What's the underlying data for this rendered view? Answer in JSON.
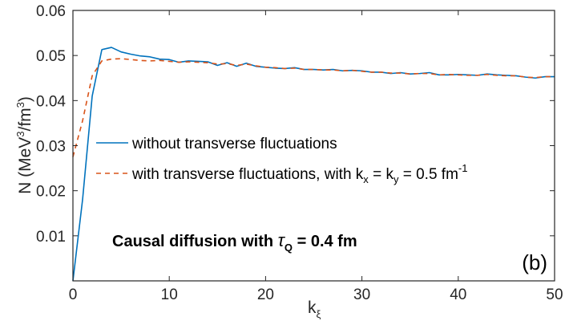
{
  "chart_data": {
    "type": "line",
    "xlabel": "k",
    "xlabel_sub": "ξ",
    "ylabel_parts": {
      "a": "N  (MeV",
      "a_sup": "3",
      "b": "/fm",
      "b_sup": "3",
      "c": ")"
    },
    "xlim": [
      0,
      50
    ],
    "ylim": [
      0,
      0.06
    ],
    "xticks": [
      0,
      10,
      20,
      30,
      40,
      50
    ],
    "xtick_labels": [
      "0",
      "10",
      "20",
      "30",
      "40",
      "50"
    ],
    "yticks": [
      0.01,
      0.02,
      0.03,
      0.04,
      0.05,
      0.06
    ],
    "ytick_labels": [
      "0.01",
      "0.02",
      "0.03",
      "0.04",
      "0.05",
      "0.06"
    ],
    "grid": false,
    "legend_position": "center-left",
    "series": [
      {
        "name": "without transverse fluctuations",
        "color": "#0072BD",
        "style": "solid",
        "x": [
          0,
          1,
          2,
          3,
          4,
          5,
          6,
          7,
          8,
          9,
          10,
          11,
          12,
          13,
          14,
          15,
          16,
          17,
          18,
          19,
          20,
          21,
          22,
          23,
          24,
          25,
          26,
          27,
          28,
          29,
          30,
          31,
          32,
          33,
          34,
          35,
          36,
          37,
          38,
          39,
          40,
          41,
          42,
          43,
          44,
          45,
          46,
          47,
          48,
          49,
          50
        ],
        "values": [
          0.0,
          0.018,
          0.041,
          0.0513,
          0.0518,
          0.0508,
          0.0503,
          0.0499,
          0.0497,
          0.0492,
          0.0491,
          0.0485,
          0.0488,
          0.0487,
          0.0486,
          0.0478,
          0.0484,
          0.0476,
          0.0483,
          0.0476,
          0.0474,
          0.0472,
          0.0471,
          0.0473,
          0.0469,
          0.0469,
          0.0468,
          0.0469,
          0.0466,
          0.0467,
          0.0466,
          0.0463,
          0.0463,
          0.046,
          0.0462,
          0.0459,
          0.046,
          0.0462,
          0.0457,
          0.0457,
          0.0458,
          0.0457,
          0.0456,
          0.0459,
          0.0457,
          0.0456,
          0.0455,
          0.0452,
          0.045,
          0.0453,
          0.0453
        ]
      },
      {
        "name_parts": {
          "a": "with transverse fluctuations, with k",
          "a_sub": "x",
          "b": " = k",
          "b_sub": "y",
          "c": " = 0.5 fm",
          "c_sup": "-1"
        },
        "color": "#D95319",
        "style": "dashed",
        "x": [
          0,
          1,
          2,
          3,
          4,
          5,
          6,
          7,
          8,
          9,
          10,
          11,
          12,
          13,
          14,
          15,
          16,
          17,
          18,
          19,
          20,
          21,
          22,
          23,
          24,
          25,
          26,
          27,
          28,
          29,
          30,
          31,
          32,
          33,
          34,
          35,
          36,
          37,
          38,
          39,
          40,
          41,
          42,
          43,
          44,
          45,
          46,
          47,
          48,
          49,
          50
        ],
        "values": [
          0.0275,
          0.0355,
          0.0455,
          0.0488,
          0.0492,
          0.0493,
          0.0491,
          0.0489,
          0.0488,
          0.0489,
          0.0487,
          0.0485,
          0.0486,
          0.0485,
          0.0484,
          0.0481,
          0.0482,
          0.0478,
          0.0481,
          0.0477,
          0.0474,
          0.0473,
          0.0471,
          0.0472,
          0.0469,
          0.0469,
          0.0468,
          0.0468,
          0.0466,
          0.0467,
          0.0465,
          0.0463,
          0.0463,
          0.0461,
          0.0461,
          0.0459,
          0.046,
          0.046,
          0.0457,
          0.0458,
          0.0457,
          0.0456,
          0.0456,
          0.0458,
          0.0456,
          0.0455,
          0.0455,
          0.0452,
          0.0451,
          0.0453,
          0.0453
        ]
      }
    ],
    "annotation": {
      "a": "Causal diffusion with ",
      "tau": "τ",
      "tau_sub": "Q",
      "b": " = 0.4 fm"
    },
    "panel_label": "(b)"
  }
}
